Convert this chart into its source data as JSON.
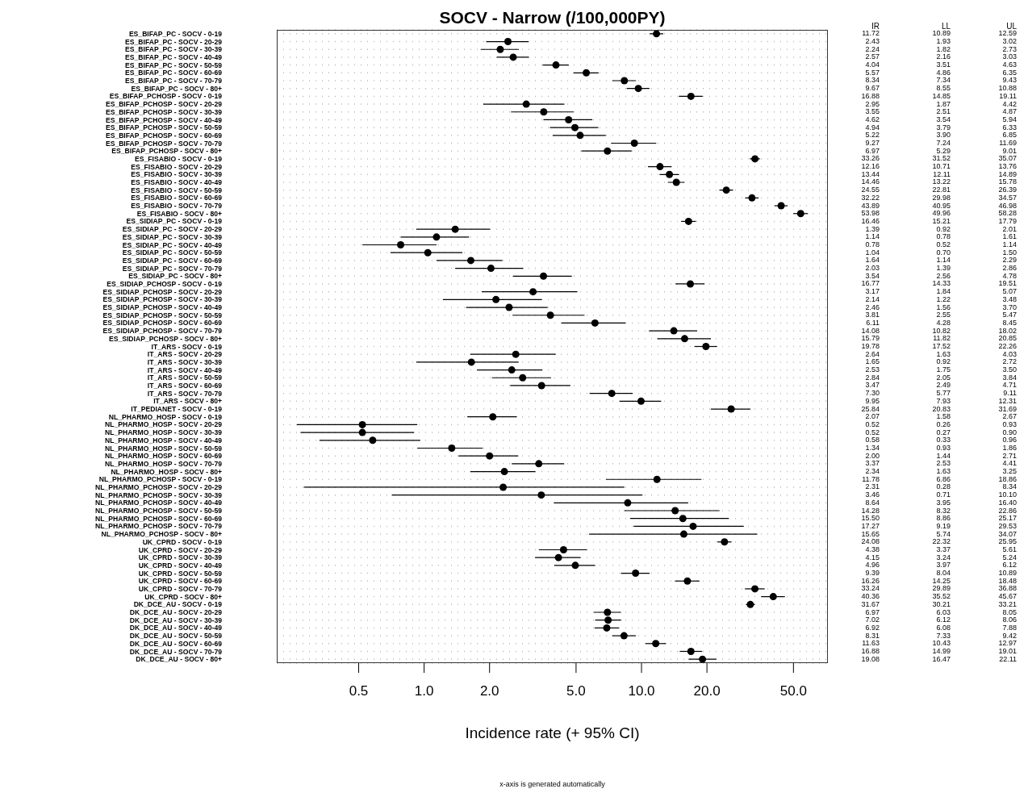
{
  "chart_data": {
    "type": "scatter",
    "orientation": "horizontal",
    "title": "SOCV - Narrow (/100,000PY)",
    "xlabel": "Incidence rate (+ 95% CI)",
    "annotations": [
      "IR",
      "LL",
      "UL",
      "x-axis is generated automatically",
      "10.89",
      "12.59",
      "1.93",
      "3.02",
      "1.82",
      "2.73",
      "2.16",
      "3.03",
      "3.51",
      "4.63",
      "4.86",
      "6.35",
      "7.34",
      "9.43",
      "8.55",
      "10.88",
      "14.85",
      "19.11",
      "1.87",
      "4.42",
      "2.51",
      "4.87",
      "3.54",
      "5.94",
      "3.79",
      "6.33",
      "3.90",
      "6.85",
      "7.24",
      "11.69",
      "5.29",
      "9.01",
      "31.52",
      "35.07",
      "10.71",
      "13.76",
      "12.11",
      "14.89",
      "13.22",
      "15.78",
      "22.81",
      "26.39",
      "29.98",
      "34.57",
      "40.95",
      "46.98",
      "49.96",
      "58.28",
      "15.21",
      "17.79",
      "0.92",
      "2.01",
      "0.78",
      "1.61",
      "0.52",
      "1.14",
      "0.70",
      "1.50",
      "1.14",
      "2.29",
      "1.39",
      "2.86",
      "2.56",
      "4.78",
      "14.33",
      "19.51",
      "1.84",
      "5.07",
      "1.22",
      "3.48",
      "1.56",
      "3.70",
      "2.55",
      "5.47",
      "4.28",
      "8.45",
      "10.82",
      "18.02",
      "11.82",
      "20.85",
      "17.52",
      "22.26",
      "1.63",
      "4.03",
      "0.92",
      "2.72",
      "1.75",
      "3.50",
      "2.05",
      "3.84",
      "2.49",
      "4.71",
      "5.77",
      "9.11",
      "7.93",
      "12.31",
      "20.83",
      "31.69",
      "1.58",
      "2.67",
      "0.26",
      "0.93",
      "0.27",
      "0.90",
      "0.33",
      "0.96",
      "0.93",
      "1.86",
      "1.44",
      "2.71",
      "2.53",
      "4.41",
      "1.63",
      "3.25",
      "6.86",
      "18.86",
      "0.28",
      "8.34",
      "0.71",
      "10.10",
      "3.95",
      "16.40",
      "8.32",
      "22.86",
      "8.86",
      "25.17",
      "9.19",
      "29.53",
      "5.74",
      "34.07",
      "22.32",
      "25.95",
      "3.37",
      "5.61",
      "3.24",
      "5.24",
      "3.97",
      "6.12",
      "8.04",
      "10.89",
      "14.25",
      "18.48",
      "29.89",
      "36.88",
      "35.52",
      "45.67",
      "30.21",
      "33.21",
      "6.03",
      "8.05",
      "6.12",
      "8.06",
      "6.08",
      "7.88",
      "7.33",
      "9.42",
      "10.43",
      "12.97",
      "14.99",
      "19.01",
      "16.47",
      "22.11"
    ],
    "categories": [
      "ES_BIFAP_PC - SOCV - 0-19",
      "ES_BIFAP_PC - SOCV - 20-29",
      "ES_BIFAP_PC - SOCV - 30-39",
      "ES_BIFAP_PC - SOCV - 40-49",
      "ES_BIFAP_PC - SOCV - 50-59",
      "ES_BIFAP_PC - SOCV - 60-69",
      "ES_BIFAP_PC - SOCV - 70-79",
      "ES_BIFAP_PC - SOCV - 80+",
      "ES_BIFAP_PCHOSP - SOCV - 0-19",
      "ES_BIFAP_PCHOSP - SOCV - 20-29",
      "ES_BIFAP_PCHOSP - SOCV - 30-39",
      "ES_BIFAP_PCHOSP - SOCV - 40-49",
      "ES_BIFAP_PCHOSP - SOCV - 50-59",
      "ES_BIFAP_PCHOSP - SOCV - 60-69",
      "ES_BIFAP_PCHOSP - SOCV - 70-79",
      "ES_BIFAP_PCHOSP - SOCV - 80+",
      "ES_FISABIO - SOCV - 0-19",
      "ES_FISABIO - SOCV - 20-29",
      "ES_FISABIO - SOCV - 30-39",
      "ES_FISABIO - SOCV - 40-49",
      "ES_FISABIO - SOCV - 50-59",
      "ES_FISABIO - SOCV - 60-69",
      "ES_FISABIO - SOCV - 70-79",
      "ES_FISABIO - SOCV - 80+",
      "ES_SIDIAP_PC - SOCV - 0-19",
      "ES_SIDIAP_PC - SOCV - 20-29",
      "ES_SIDIAP_PC - SOCV - 30-39",
      "ES_SIDIAP_PC - SOCV - 40-49",
      "ES_SIDIAP_PC - SOCV - 50-59",
      "ES_SIDIAP_PC - SOCV - 60-69",
      "ES_SIDIAP_PC - SOCV - 70-79",
      "ES_SIDIAP_PC - SOCV - 80+",
      "ES_SIDIAP_PCHOSP - SOCV - 0-19",
      "ES_SIDIAP_PCHOSP - SOCV - 20-29",
      "ES_SIDIAP_PCHOSP - SOCV - 30-39",
      "ES_SIDIAP_PCHOSP - SOCV - 40-49",
      "ES_SIDIAP_PCHOSP - SOCV - 50-59",
      "ES_SIDIAP_PCHOSP - SOCV - 60-69",
      "ES_SIDIAP_PCHOSP - SOCV - 70-79",
      "ES_SIDIAP_PCHOSP - SOCV - 80+",
      "IT_ARS - SOCV - 0-19",
      "IT_ARS - SOCV - 20-29",
      "IT_ARS - SOCV - 30-39",
      "IT_ARS - SOCV - 40-49",
      "IT_ARS - SOCV - 50-59",
      "IT_ARS - SOCV - 60-69",
      "IT_ARS - SOCV - 70-79",
      "IT_ARS - SOCV - 80+",
      "IT_PEDIANET - SOCV - 0-19",
      "NL_PHARMO_HOSP - SOCV - 0-19",
      "NL_PHARMO_HOSP - SOCV - 20-29",
      "NL_PHARMO_HOSP - SOCV - 30-39",
      "NL_PHARMO_HOSP - SOCV - 40-49",
      "NL_PHARMO_HOSP - SOCV - 50-59",
      "NL_PHARMO_HOSP - SOCV - 60-69",
      "NL_PHARMO_HOSP - SOCV - 70-79",
      "NL_PHARMO_HOSP - SOCV - 80+",
      "NL_PHARMO_PCHOSP - SOCV - 0-19",
      "NL_PHARMO_PCHOSP - SOCV - 20-29",
      "NL_PHARMO_PCHOSP - SOCV - 30-39",
      "NL_PHARMO_PCHOSP - SOCV - 40-49",
      "NL_PHARMO_PCHOSP - SOCV - 50-59",
      "NL_PHARMO_PCHOSP - SOCV - 60-69",
      "NL_PHARMO_PCHOSP - SOCV - 70-79",
      "NL_PHARMO_PCHOSP - SOCV - 80+",
      "UK_CPRD - SOCV - 0-19",
      "UK_CPRD - SOCV - 20-29",
      "UK_CPRD - SOCV - 30-39",
      "UK_CPRD - SOCV - 40-49",
      "UK_CPRD - SOCV - 50-59",
      "UK_CPRD - SOCV - 60-69",
      "UK_CPRD - SOCV - 70-79",
      "UK_CPRD - SOCV - 80+",
      "DK_DCE_AU - SOCV - 0-19",
      "DK_DCE_AU - SOCV - 20-29",
      "DK_DCE_AU - SOCV - 30-39",
      "DK_DCE_AU - SOCV - 40-49",
      "DK_DCE_AU - SOCV - 50-59",
      "DK_DCE_AU - SOCV - 60-69",
      "DK_DCE_AU - SOCV - 70-79",
      "DK_DCE_AU - SOCV - 80+"
    ],
    "values": [
      11.72,
      2.43,
      2.24,
      2.57,
      4.04,
      5.57,
      8.34,
      9.67,
      16.88,
      2.95,
      3.55,
      4.62,
      4.94,
      5.22,
      9.27,
      6.97,
      33.26,
      12.16,
      13.44,
      14.46,
      24.55,
      32.22,
      43.89,
      53.98,
      16.46,
      1.39,
      1.14,
      0.78,
      1.04,
      1.64,
      2.03,
      3.54,
      16.77,
      3.17,
      2.14,
      2.46,
      3.81,
      6.11,
      14.08,
      15.79,
      19.78,
      2.64,
      1.65,
      2.53,
      2.84,
      3.47,
      7.3,
      9.95,
      25.84,
      2.07,
      0.52,
      0.52,
      0.58,
      1.34,
      2,
      3.37,
      2.34,
      11.78,
      2.31,
      3.46,
      8.64,
      14.28,
      15.5,
      17.27,
      15.65,
      24.08,
      4.38,
      4.15,
      4.96,
      9.39,
      16.26,
      33.24,
      40.36,
      31.67,
      6.97,
      7.02,
      6.92,
      8.31,
      11.63,
      16.88,
      19.08
    ],
    "value_labels": [
      "11.72",
      "2.43",
      "2.24",
      "2.57",
      "4.04",
      "5.57",
      "8.34",
      "9.67",
      "16.88",
      "2.95",
      "3.55",
      "4.62",
      "4.94",
      "5.22",
      "9.27",
      "6.97",
      "33.26",
      "12.16",
      "13.44",
      "14.46",
      "24.55",
      "32.22",
      "43.89",
      "53.98",
      "16.46",
      "1.39",
      "1.14",
      "0.78",
      "1.04",
      "1.64",
      "2.03",
      "3.54",
      "16.77",
      "3.17",
      "2.14",
      "2.46",
      "3.81",
      "6.11",
      "14.08",
      "15.79",
      "19.78",
      "2.64",
      "1.65",
      "2.53",
      "2.84",
      "3.47",
      "7.30",
      "9.95",
      "25.84",
      "2.07",
      "0.52",
      "0.52",
      "0.58",
      "1.34",
      "2.00",
      "3.37",
      "2.34",
      "11.78",
      "2.31",
      "3.46",
      "8.64",
      "14.28",
      "15.50",
      "17.27",
      "15.65",
      "24.08",
      "4.38",
      "4.15",
      "4.96",
      "9.39",
      "16.26",
      "33.24",
      "40.36",
      "31.67",
      "6.97",
      "7.02",
      "6.92",
      "8.31",
      "11.63",
      "16.88",
      "19.08"
    ],
    "errors": [
      [
        10.89,
        12.59
      ],
      [
        1.93,
        3.02
      ],
      [
        1.82,
        2.73
      ],
      [
        2.16,
        3.03
      ],
      [
        3.51,
        4.63
      ],
      [
        4.86,
        6.35
      ],
      [
        7.34,
        9.43
      ],
      [
        8.55,
        10.88
      ],
      [
        14.85,
        19.11
      ],
      [
        1.87,
        4.42
      ],
      [
        2.51,
        4.87
      ],
      [
        3.54,
        5.94
      ],
      [
        3.79,
        6.33
      ],
      [
        3.9,
        6.85
      ],
      [
        7.24,
        11.69
      ],
      [
        5.29,
        9.01
      ],
      [
        31.52,
        35.07
      ],
      [
        10.71,
        13.76
      ],
      [
        12.11,
        14.89
      ],
      [
        13.22,
        15.78
      ],
      [
        22.81,
        26.39
      ],
      [
        29.98,
        34.57
      ],
      [
        40.95,
        46.98
      ],
      [
        49.96,
        58.28
      ],
      [
        15.21,
        17.79
      ],
      [
        0.92,
        2.01
      ],
      [
        0.78,
        1.61
      ],
      [
        0.52,
        1.14
      ],
      [
        0.7,
        1.5
      ],
      [
        1.14,
        2.29
      ],
      [
        1.39,
        2.86
      ],
      [
        2.56,
        4.78
      ],
      [
        14.33,
        19.51
      ],
      [
        1.84,
        5.07
      ],
      [
        1.22,
        3.48
      ],
      [
        1.56,
        3.7
      ],
      [
        2.55,
        5.47
      ],
      [
        4.28,
        8.45
      ],
      [
        10.82,
        18.02
      ],
      [
        11.82,
        20.85
      ],
      [
        17.52,
        22.26
      ],
      [
        1.63,
        4.03
      ],
      [
        0.92,
        2.72
      ],
      [
        1.75,
        3.5
      ],
      [
        2.05,
        3.84
      ],
      [
        2.49,
        4.71
      ],
      [
        5.77,
        9.11
      ],
      [
        7.93,
        12.31
      ],
      [
        20.83,
        31.69
      ],
      [
        1.58,
        2.67
      ],
      [
        0.26,
        0.93
      ],
      [
        0.27,
        0.9
      ],
      [
        0.33,
        0.96
      ],
      [
        0.93,
        1.86
      ],
      [
        1.44,
        2.71
      ],
      [
        2.53,
        4.41
      ],
      [
        1.63,
        3.25
      ],
      [
        6.86,
        18.86
      ],
      [
        0.28,
        8.34
      ],
      [
        0.71,
        10.1
      ],
      [
        3.95,
        16.4
      ],
      [
        8.32,
        22.86
      ],
      [
        8.86,
        25.17
      ],
      [
        9.19,
        29.53
      ],
      [
        5.74,
        34.07
      ],
      [
        22.32,
        25.95
      ],
      [
        3.37,
        5.61
      ],
      [
        3.24,
        5.24
      ],
      [
        3.97,
        6.12
      ],
      [
        8.04,
        10.89
      ],
      [
        14.25,
        18.48
      ],
      [
        29.89,
        36.88
      ],
      [
        35.52,
        45.67
      ],
      [
        30.21,
        33.21
      ],
      [
        6.03,
        8.05
      ],
      [
        6.12,
        8.06
      ],
      [
        6.08,
        7.88
      ],
      [
        7.33,
        9.42
      ],
      [
        10.43,
        12.97
      ],
      [
        14.99,
        19.01
      ],
      [
        16.47,
        22.11
      ]
    ],
    "color": "#000000",
    "marker": "circle",
    "grid": "y",
    "log": "x",
    "xlim": [
      0.21,
      72
    ],
    "xticks": [
      {
        "value": 0.5,
        "label": "0.5"
      },
      {
        "value": 1,
        "label": "1.0"
      },
      {
        "value": 2,
        "label": "2.0"
      },
      {
        "value": 5,
        "label": "5.0"
      },
      {
        "value": 10,
        "label": "10.0"
      },
      {
        "value": 20,
        "label": "20.0"
      },
      {
        "value": 50,
        "label": "50.0"
      }
    ]
  }
}
